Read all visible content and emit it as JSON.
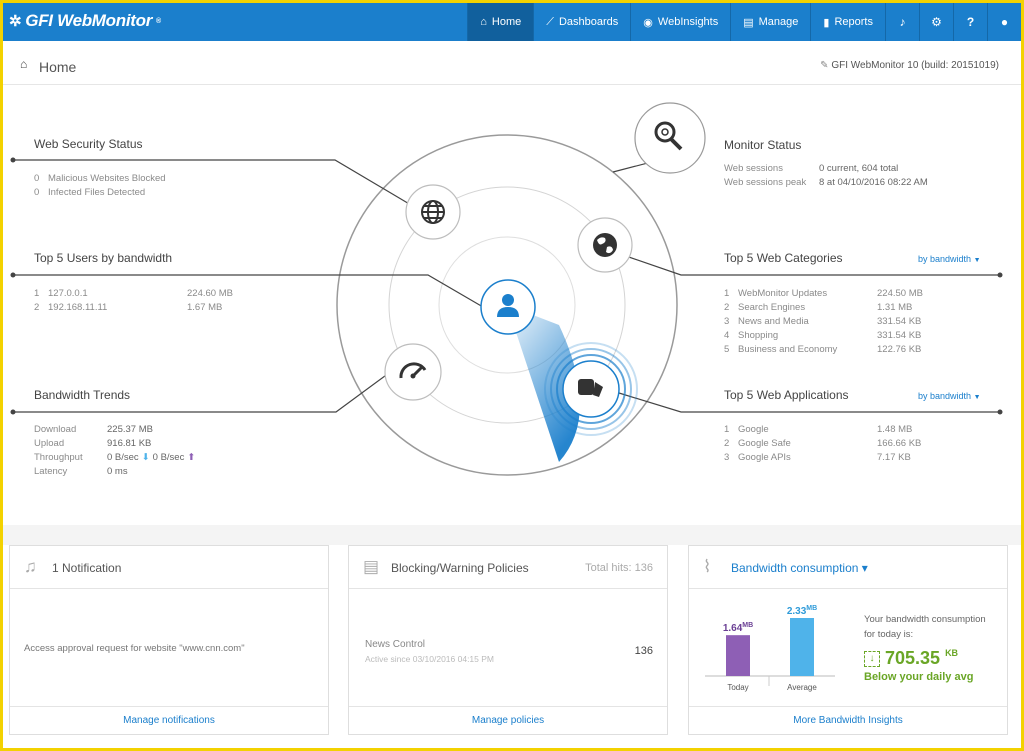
{
  "app": {
    "logo": "GFI WebMonitor",
    "logo_mark": "®"
  },
  "nav": {
    "items": [
      {
        "label": "Home",
        "icon": "home-icon",
        "glyph": "⌂"
      },
      {
        "label": "Dashboards",
        "icon": "chart-icon",
        "glyph": "📈"
      },
      {
        "label": "WebInsights",
        "icon": "eye-icon",
        "glyph": "👁"
      },
      {
        "label": "Manage",
        "icon": "list-icon",
        "glyph": "▤"
      },
      {
        "label": "Reports",
        "icon": "bar-chart-icon",
        "glyph": "▮"
      }
    ],
    "icons": [
      {
        "name": "bell-icon",
        "glyph": "🔔"
      },
      {
        "name": "gear-icon",
        "glyph": "⚙"
      },
      {
        "name": "help-icon",
        "glyph": "?"
      },
      {
        "name": "user-icon",
        "glyph": "👤"
      }
    ]
  },
  "page": {
    "title": "Home",
    "build": "GFI WebMonitor 10 (build: 20151019)"
  },
  "security": {
    "title": "Web Security Status",
    "rows": [
      {
        "n": "0",
        "label": "Malicious Websites Blocked"
      },
      {
        "n": "0",
        "label": "Infected Files Detected"
      }
    ]
  },
  "users": {
    "title": "Top 5 Users by bandwidth",
    "rows": [
      {
        "n": "1",
        "label": "127.0.0.1",
        "value": "224.60 MB"
      },
      {
        "n": "2",
        "label": "192.168.11.11",
        "value": "1.67 MB"
      }
    ]
  },
  "bandwidth": {
    "title": "Bandwidth Trends",
    "download_label": "Download",
    "download": "225.37 MB",
    "upload_label": "Upload",
    "upload": "916.81 KB",
    "throughput_label": "Throughput",
    "throughput_down": "0 B/sec",
    "throughput_up": "0 B/sec",
    "latency_label": "Latency",
    "latency": "0 ms"
  },
  "monitor": {
    "title": "Monitor Status",
    "sessions_label": "Web sessions",
    "sessions": "0 current, 604 total",
    "peak_label": "Web sessions peak",
    "peak": "8 at 04/10/2016 08:22 AM"
  },
  "categories": {
    "title": "Top 5 Web Categories",
    "selector": "by bandwidth",
    "rows": [
      {
        "n": "1",
        "label": "WebMonitor Updates",
        "value": "224.50 MB"
      },
      {
        "n": "2",
        "label": "Search Engines",
        "value": "1.31 MB"
      },
      {
        "n": "3",
        "label": "News and Media",
        "value": "331.54 KB"
      },
      {
        "n": "4",
        "label": "Shopping",
        "value": "331.54 KB"
      },
      {
        "n": "5",
        "label": "Business and Economy",
        "value": "122.76 KB"
      }
    ]
  },
  "applications": {
    "title": "Top 5 Web Applications",
    "selector": "by bandwidth",
    "rows": [
      {
        "n": "1",
        "label": "Google",
        "value": "1.48 MB"
      },
      {
        "n": "2",
        "label": "Google Safe",
        "value": "166.66 KB"
      },
      {
        "n": "3",
        "label": "Google APIs",
        "value": "7.17 KB"
      }
    ]
  },
  "notifications": {
    "title": "1 Notification",
    "message": "Access approval request for website \"www.cnn.com\"",
    "footer": "Manage notifications"
  },
  "policies": {
    "title": "Blocking/Warning Policies",
    "total": "Total hits: 136",
    "policy_name": "News Control",
    "policy_since": "Active since 03/10/2016 04:15 PM",
    "policy_hits": "136",
    "footer": "Manage policies"
  },
  "consumption": {
    "title": "Bandwidth consumption",
    "caret": "▾",
    "today_value": "1.64",
    "today_unit": "MB",
    "today_label": "Today",
    "avg_value": "2.33",
    "avg_unit": "MB",
    "avg_label": "Average",
    "today_fraction": 0.704,
    "your_text": "Your bandwidth consumption for today is:",
    "amount": "705.35",
    "amount_unit": "KB",
    "below": "Below your daily avg",
    "footer": "More Bandwidth Insights",
    "colors": {
      "today": "#8e5fb5",
      "avg": "#4fb3ea",
      "green": "#6aa626"
    }
  }
}
